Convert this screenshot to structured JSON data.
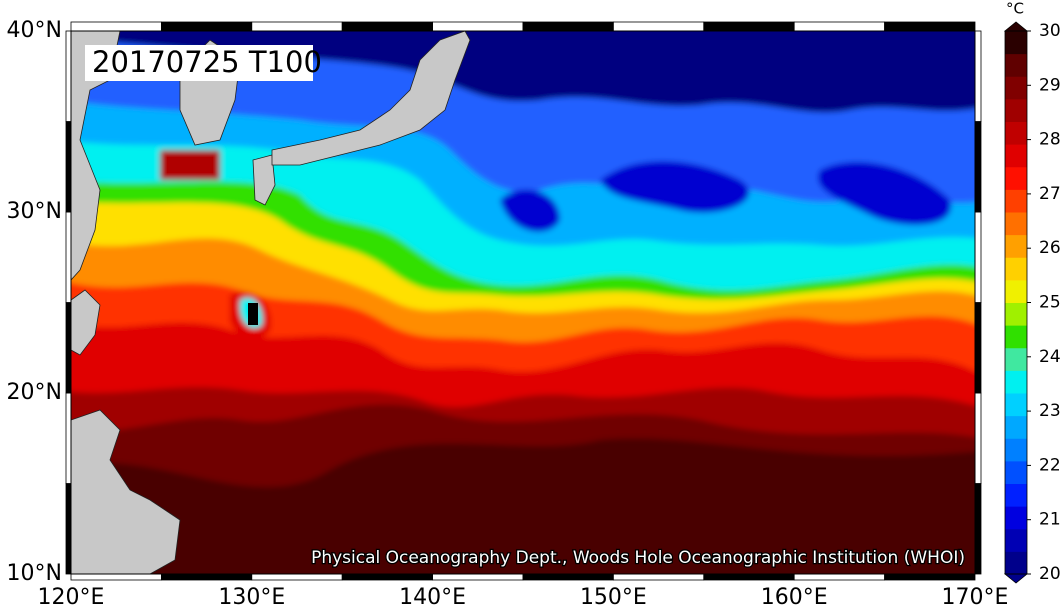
{
  "map": {
    "title": "20170725 T100",
    "credit": "Physical Oceanography Dept., Woods Hole Oceanographic Institution (WHOI)",
    "xlim": [
      120,
      170
    ],
    "ylim": [
      10,
      40
    ],
    "xticks": [
      {
        "value": 120,
        "label": "120°E"
      },
      {
        "value": 130,
        "label": "130°E"
      },
      {
        "value": 140,
        "label": "140°E"
      },
      {
        "value": 150,
        "label": "150°E"
      },
      {
        "value": 160,
        "label": "160°E"
      },
      {
        "value": 170,
        "label": "170°E"
      }
    ],
    "yticks": [
      {
        "value": 10,
        "label": "10°N"
      },
      {
        "value": 20,
        "label": "20°N"
      },
      {
        "value": 30,
        "label": "30°N"
      },
      {
        "value": 40,
        "label": "40°N"
      }
    ],
    "colorbar": {
      "unit": "°C",
      "lim": [
        20,
        30
      ],
      "ticks": [
        20,
        21,
        22,
        23,
        24,
        25,
        26,
        27,
        28,
        29,
        30
      ],
      "colors": [
        "#00008b",
        "#0000b4",
        "#0000e0",
        "#0020ff",
        "#0050ff",
        "#0080ff",
        "#00a8ff",
        "#00d0ff",
        "#00f0f0",
        "#40e8a0",
        "#30e000",
        "#a0f000",
        "#f0f000",
        "#ffd000",
        "#ffa000",
        "#ff7000",
        "#ff4000",
        "#ff1000",
        "#e00000",
        "#c00000",
        "#a00000",
        "#800000",
        "#600000",
        "#2a0000"
      ]
    }
  }
}
